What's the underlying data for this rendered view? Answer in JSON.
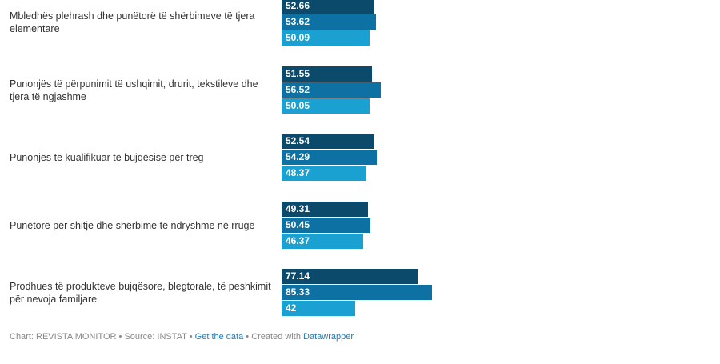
{
  "chart_data": {
    "type": "grouped-bar",
    "categories": [
      "Mbledhës plehrash dhe punëtorë të shërbimeve të tjera elementare",
      "Punonjës të përpunimit të ushqimit, drurit, tekstileve dhe tjera të ngjashme",
      "Punonjës të kualifikuar të bujqësisë për treg",
      "Punëtorë për shitje dhe shërbime të ndryshme në rrugë",
      "Prodhues të produkteve bujqësore, blegtorale, të peshkimit për nevoja familjare"
    ],
    "series": [
      {
        "color": "#0b4a6b",
        "values": [
          52.66,
          51.55,
          52.54,
          49.31,
          77.14
        ]
      },
      {
        "color": "#0d72a3",
        "values": [
          53.62,
          56.52,
          54.29,
          50.45,
          85.33
        ]
      },
      {
        "color": "#1aa1d2",
        "values": [
          50.09,
          50.05,
          48.37,
          46.37,
          42
        ]
      }
    ],
    "footer": {
      "chart": "Chart: REVISTA MONITOR",
      "source": "Source: INSTAT",
      "data_link": "Get the data",
      "created": "Created with",
      "tool_link": "Datawrapper",
      "separator": "•"
    }
  }
}
